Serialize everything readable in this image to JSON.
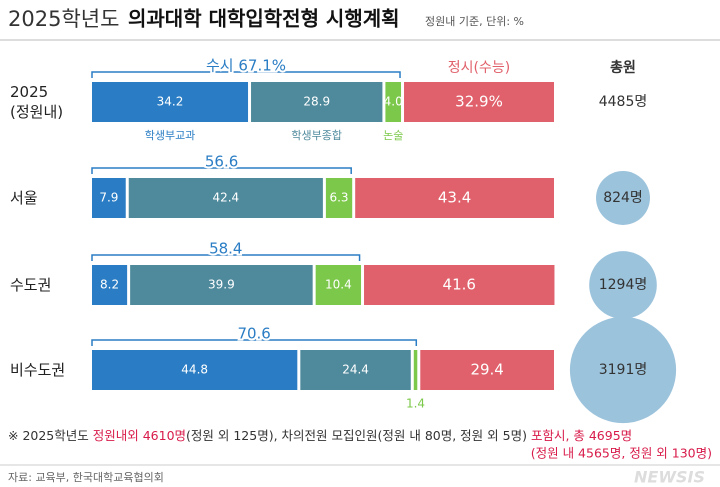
{
  "chart_data": {
    "type": "stacked-bar",
    "title_part1": "2025학년도",
    "title_part2": "의과대학 대학입학전형 시행계획",
    "subtitle": "정원내 기준, 단위: %",
    "categories": [
      "2025\n(정원내)",
      "서울",
      "수도권",
      "비수도권"
    ],
    "xlim": [
      0,
      100
    ],
    "series": [
      {
        "name": "학생부교과",
        "color": "#2a7dc4",
        "values": [
          34.2,
          7.9,
          8.2,
          44.8
        ]
      },
      {
        "name": "학생부종합",
        "color": "#4f8a9c",
        "values": [
          28.9,
          42.4,
          39.9,
          24.4
        ]
      },
      {
        "name": "논술",
        "color": "#7cc84a",
        "values": [
          4.0,
          6.3,
          10.4,
          1.4
        ],
        "value_labels": [
          "4.0",
          "6.3",
          "10.4",
          "1.4"
        ]
      },
      {
        "name": "정시(수능)",
        "color": "#e0616b",
        "values": [
          32.9,
          43.4,
          41.6,
          29.4
        ],
        "value_labels": [
          "32.9%",
          "43.4",
          "41.6",
          "29.4"
        ]
      }
    ],
    "susi": {
      "values": [
        67.1,
        56.6,
        58.4,
        70.6
      ],
      "value_labels": [
        "수시 67.1%",
        "56.6",
        "58.4",
        "70.6"
      ],
      "color": "#2a7dc4"
    },
    "totals": {
      "header": "총원",
      "values": [
        4485,
        824,
        1294,
        3191
      ],
      "value_labels": [
        "4485명",
        "824명",
        "1294명",
        "3191명"
      ],
      "color": "#9cc3dc"
    },
    "footnote": [
      {
        "text": "※  2025학년도 ",
        "color": "#333333"
      },
      {
        "text": "정원내외 4610명",
        "color": "#d81b4a"
      },
      {
        "text": "(정원 외 125명), 차의전원 모집인원(정원 내 80명, 정원 외 5명) ",
        "color": "#333333"
      },
      {
        "text": "포함시, 총 4695명",
        "color": "#d81b4a"
      }
    ],
    "footnote_line2": {
      "text": "(정원 내 4565명, 정원 외 130명)",
      "color": "#d81b4a"
    },
    "source": "자료: 교육부, 한국대학교육협의회",
    "watermark": "NEWSIS"
  }
}
